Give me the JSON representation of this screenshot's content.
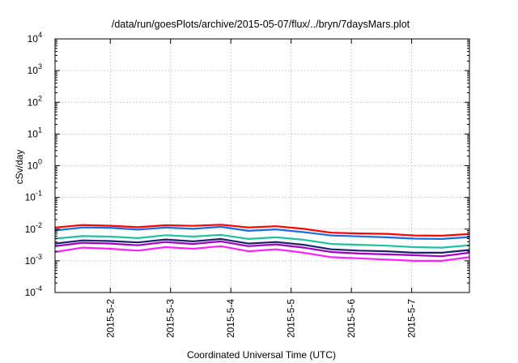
{
  "chart_data": {
    "type": "line",
    "title": "/data/run/goesPlots/archive/2015-05-07/flux/../bryn/7daysMars.plot",
    "xlabel": "Coordinated Universal Time (UTC)",
    "ylabel": "cSv/day",
    "y_scale": "log",
    "ylim": [
      0.0001,
      10000
    ],
    "y_ticks": [
      {
        "base": "10",
        "exp": "4"
      },
      {
        "base": "10",
        "exp": "3"
      },
      {
        "base": "10",
        "exp": "2"
      },
      {
        "base": "10",
        "exp": "1"
      },
      {
        "base": "10",
        "exp": "0"
      },
      {
        "base": "10",
        "exp": "-1"
      },
      {
        "base": "10",
        "exp": "-2"
      },
      {
        "base": "10",
        "exp": "-3"
      },
      {
        "base": "10",
        "exp": "-4"
      }
    ],
    "xlim": [
      "2015-05-01 02:00",
      "2015-05-07 23:00"
    ],
    "x_ticks": [
      "2015-5-2",
      "2015-5-3",
      "2015-5-4",
      "2015-5-5",
      "2015-5-6",
      "2015-5-7"
    ],
    "grid": true,
    "x_sample_times": [
      "05-01 02:00",
      "05-01 13:00",
      "05-02 00:00",
      "05-02 11:00",
      "05-02 22:00",
      "05-03 09:00",
      "05-03 20:00",
      "05-04 07:00",
      "05-04 18:00",
      "05-05 05:00",
      "05-05 16:00",
      "05-06 03:00",
      "05-06 14:00",
      "05-07 01:00",
      "05-07 12:00",
      "05-07 23:00"
    ],
    "series": [
      {
        "color": "#ff0000",
        "values": [
          0.0112,
          0.0135,
          0.0128,
          0.0115,
          0.0132,
          0.0127,
          0.0138,
          0.0113,
          0.0123,
          0.0102,
          0.0077,
          0.0073,
          0.0071,
          0.0063,
          0.0062,
          0.007
        ]
      },
      {
        "color": "#1c6be0",
        "values": [
          0.009,
          0.0113,
          0.011,
          0.0096,
          0.0112,
          0.0102,
          0.0118,
          0.0088,
          0.0098,
          0.008,
          0.0063,
          0.0059,
          0.0055,
          0.005,
          0.0049,
          0.0056
        ]
      },
      {
        "color": "#20c0a0",
        "values": [
          0.005,
          0.006,
          0.0058,
          0.0052,
          0.0064,
          0.0058,
          0.0066,
          0.0049,
          0.0055,
          0.0046,
          0.0034,
          0.0032,
          0.003,
          0.0027,
          0.0026,
          0.0031
        ]
      },
      {
        "color": "#20206a",
        "values": [
          0.0035,
          0.0044,
          0.0042,
          0.0038,
          0.0047,
          0.0041,
          0.0049,
          0.0035,
          0.0039,
          0.0032,
          0.0023,
          0.0021,
          0.002,
          0.0018,
          0.0018,
          0.0022
        ]
      },
      {
        "color": "#a000c0",
        "values": [
          0.0029,
          0.0037,
          0.0035,
          0.0031,
          0.0039,
          0.0034,
          0.0041,
          0.0029,
          0.0033,
          0.0026,
          0.0019,
          0.0017,
          0.0016,
          0.0015,
          0.0014,
          0.0018
        ]
      },
      {
        "color": "#ff20ff",
        "values": [
          0.0019,
          0.0026,
          0.0024,
          0.0021,
          0.0027,
          0.0024,
          0.0029,
          0.002,
          0.0023,
          0.0018,
          0.0013,
          0.0012,
          0.0011,
          0.001,
          0.001,
          0.0013
        ]
      }
    ]
  }
}
